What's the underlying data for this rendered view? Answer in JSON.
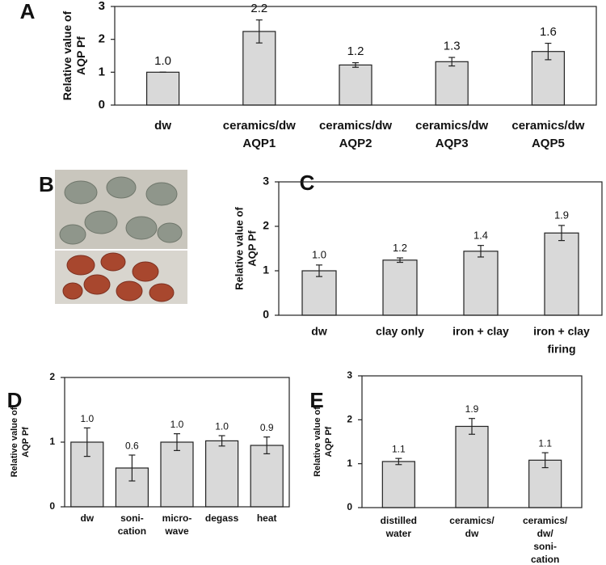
{
  "chart_data": [
    {
      "type": "bar",
      "panel": "A",
      "ylabel": [
        "Relative value of",
        "AQP Pf"
      ],
      "categories": [
        [
          "dw"
        ],
        [
          "ceramics/dw",
          "AQP1"
        ],
        [
          "ceramics/dw",
          "AQP2"
        ],
        [
          "ceramics/dw",
          "AQP3"
        ],
        [
          "ceramics/dw",
          "AQP5"
        ]
      ],
      "values": [
        1.0,
        2.24,
        1.22,
        1.32,
        1.63
      ],
      "value_labels": [
        "1.0",
        "2.2",
        "1.2",
        "1.3",
        "1.6"
      ],
      "errors": [
        0,
        0.35,
        0.07,
        0.13,
        0.25
      ],
      "color": "#d9d9d9",
      "ylim": [
        0,
        3
      ],
      "yticks": [
        0,
        1,
        2,
        3
      ]
    },
    {
      "type": "bar",
      "panel": "C",
      "ylabel": [
        "Relative value of",
        "AQP Pf"
      ],
      "categories": [
        [
          "dw"
        ],
        [
          "clay only"
        ],
        [
          "iron + clay"
        ],
        [
          "iron + clay",
          "firing"
        ]
      ],
      "values": [
        1.0,
        1.24,
        1.44,
        1.85
      ],
      "value_labels": [
        "1.0",
        "1.2",
        "1.4",
        "1.9"
      ],
      "errors": [
        0.13,
        0.05,
        0.13,
        0.17
      ],
      "color": "#d9d9d9",
      "ylim": [
        0,
        3
      ],
      "yticks": [
        0,
        1,
        2,
        3
      ]
    },
    {
      "type": "bar",
      "panel": "D",
      "ylabel": [
        "Relative value of",
        "AQP Pf"
      ],
      "categories": [
        [
          "dw"
        ],
        [
          "soni-",
          "cation"
        ],
        [
          "micro-",
          "wave"
        ],
        [
          "degass"
        ],
        [
          "heat"
        ]
      ],
      "values": [
        1.0,
        0.6,
        1.0,
        1.02,
        0.95
      ],
      "value_labels": [
        "1.0",
        "0.6",
        "1.0",
        "1.0",
        "0.9"
      ],
      "errors": [
        0.22,
        0.2,
        0.13,
        0.08,
        0.13
      ],
      "color": "#d9d9d9",
      "ylim": [
        0,
        2
      ],
      "yticks": [
        0,
        1,
        2
      ]
    },
    {
      "type": "bar",
      "panel": "E",
      "ylabel": [
        "Relative value of",
        "AQP Pf"
      ],
      "categories": [
        [
          "distilled",
          "water"
        ],
        [
          "ceramics/",
          "dw"
        ],
        [
          "ceramics/",
          "dw/",
          "soni-",
          "cation"
        ]
      ],
      "values": [
        1.05,
        1.85,
        1.08
      ],
      "value_labels": [
        "1.1",
        "1.9",
        "1.1"
      ],
      "errors": [
        0.07,
        0.18,
        0.17
      ],
      "color": "#d9d9d9",
      "ylim": [
        0,
        3
      ],
      "yticks": [
        0,
        1,
        2,
        3
      ]
    }
  ],
  "image_panel": {
    "label": "B"
  }
}
